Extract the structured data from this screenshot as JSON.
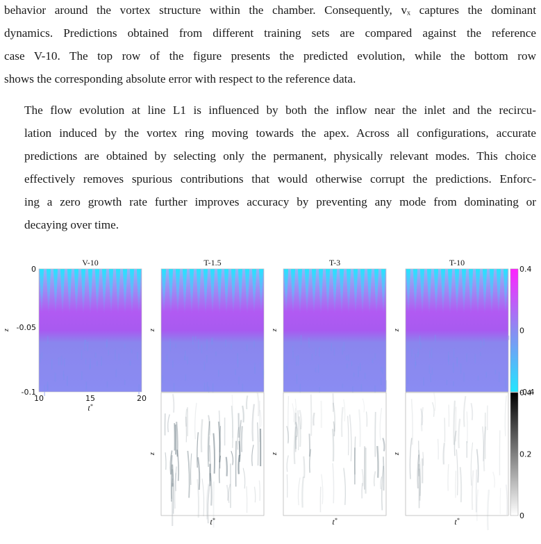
{
  "paragraphs": [
    {
      "lines": [
        "behavior around the vortex structure within the chamber. Consequently, vₓ captures the dominant",
        "dynamics. Predictions obtained from different training sets are compared against the reference",
        "case V-10. The top row of the figure presents the predicted evolution, while the bottom row",
        "shows the corresponding absolute error with respect to the reference data."
      ]
    },
    {
      "lines": [
        "The flow evolution at line L1 is influenced by both the inflow near the inlet and the recircu-",
        "lation induced by the vortex ring moving towards the apex. Across all configurations, accurate",
        "predictions are obtained by selecting only the permanent, physically relevant modes. This choice",
        "effectively removes spurious contributions that would otherwise corrupt the predictions. Enforc-",
        "ing a zero growth rate further improves accuracy by preventing any mode from dominating or",
        "decaying over time."
      ]
    }
  ],
  "chart_data": [
    {
      "type": "heatmap",
      "title": "V-10",
      "xlabel": "t*",
      "ylabel": "z",
      "xlim": [
        10,
        20
      ],
      "ylim": [
        -0.1,
        0
      ],
      "xticks": [
        "10",
        "15",
        "20"
      ],
      "yticks": [
        "0",
        "-0.05",
        "-0.1"
      ],
      "colorbar": {
        "ticks": [
          "0.4",
          "0",
          "-0.4"
        ],
        "range": [
          -0.4,
          0.4
        ],
        "colors": [
          "#22e5ff",
          "#8a8cf2",
          "#ff22ff"
        ]
      }
    },
    {
      "type": "heatmap",
      "title": "T-1.5",
      "xlabel": "t*",
      "ylabel": "z"
    },
    {
      "type": "heatmap",
      "title": "T-3",
      "xlabel": "t*",
      "ylabel": "z"
    },
    {
      "type": "heatmap",
      "title": "T-10",
      "xlabel": "t*",
      "ylabel": "z"
    },
    {
      "type": "heatmap",
      "xlabel": "t*",
      "ylabel": "z",
      "error_level": 0.55
    },
    {
      "type": "heatmap",
      "xlabel": "t*",
      "ylabel": "z",
      "error_level": 0.3
    },
    {
      "type": "heatmap",
      "xlabel": "t*",
      "ylabel": "z",
      "error_level": 0.2,
      "colorbar": {
        "ticks": [
          "0.4",
          "0.2",
          "0"
        ],
        "range": [
          0,
          0.4
        ],
        "colors": [
          "#ffffff",
          "#000000"
        ]
      }
    }
  ]
}
